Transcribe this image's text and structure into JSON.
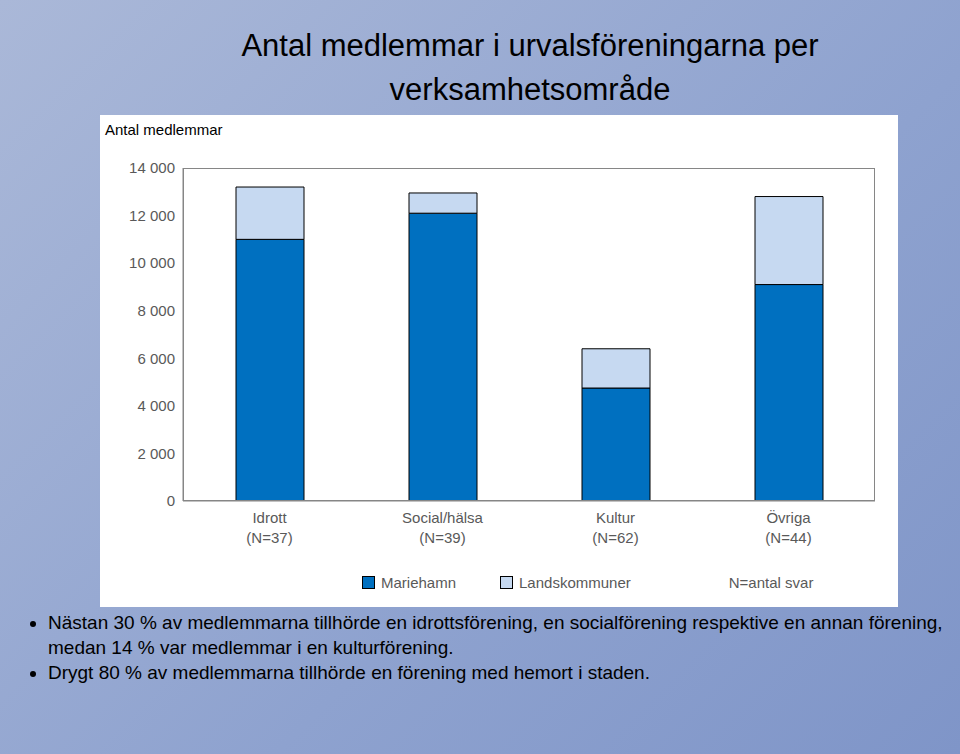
{
  "chart_data": {
    "type": "bar",
    "title": "Antal medlemmar i urvalsföreningarna per verksamhetsområde",
    "y_label": "Antal medlemmar",
    "categories": [
      "Idrott (N=37)",
      "Social/hälsa (N=39)",
      "Kultur (N=62)",
      "Övriga (N=44)"
    ],
    "series": [
      {
        "name": "Mariehamn",
        "color": "#0070c0",
        "values": [
          11000,
          12100,
          4750,
          9100
        ]
      },
      {
        "name": "Landskommuner",
        "color": "#c6d9f1",
        "values": [
          2200,
          850,
          1650,
          3700
        ]
      }
    ],
    "stacked": true,
    "grid": false,
    "legend": "bottom",
    "ylim": [
      0,
      14000
    ],
    "yticks": [
      0,
      {
        "value": 2000,
        "label": "2 000"
      },
      {
        "value": 4000,
        "label": "4 000"
      },
      {
        "value": 6000,
        "label": "6 000"
      },
      {
        "value": 8000,
        "label": "8 000"
      },
      {
        "value": 10000,
        "label": "10 000"
      },
      {
        "value": 12000,
        "label": "12 000"
      },
      {
        "value": 14000,
        "label": "14 000"
      }
    ],
    "annotations": [
      "N=antal svar"
    ]
  },
  "bullets": [
    "Nästan 30 % av medlemmarna tillhörde en idrottsförening, en socialförening respektive en annan förening, medan 14 % var medlemmar i en kulturförening.",
    "Drygt 80 % av medlemmarna tillhörde en förening med hemort i staden."
  ]
}
